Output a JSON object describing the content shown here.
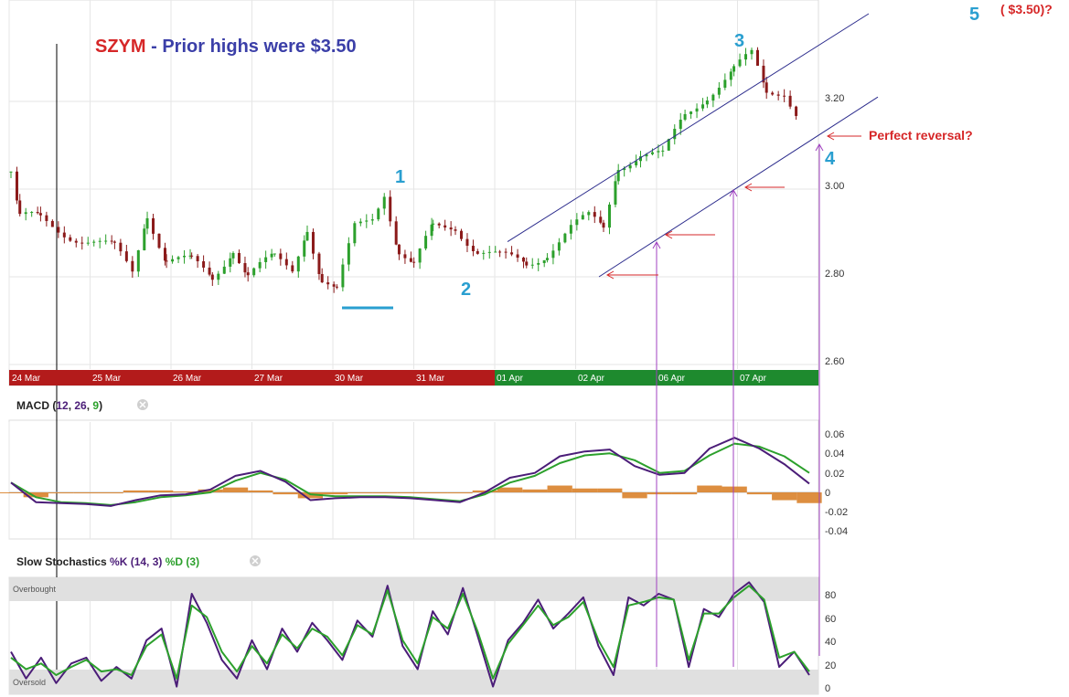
{
  "title": {
    "ticker": "SZYM",
    "sep": " - ",
    "text": "Prior highs were $3.50",
    "ticker_color": "#d62728",
    "text_color": "#3b3fa8"
  },
  "colors": {
    "up": "#2ca02c",
    "down": "#8b1a1a",
    "trend": "#2b2b8c",
    "wave": "#2a9fd0",
    "anno": "#d62728",
    "guide": "#a040c0",
    "macd": "#4b1d78",
    "signal": "#2ca02c",
    "hist": "#d9822b",
    "band_red": "#b31b1b",
    "band_green": "#1e8a2e"
  },
  "price_axis": {
    "ticks": [
      "3.20",
      "3.00",
      "2.80",
      "2.60"
    ]
  },
  "dates": [
    "24 Mar",
    "25 Mar",
    "26 Mar",
    "27 Mar",
    "30 Mar",
    "31 Mar",
    "01 Apr",
    "02 Apr",
    "06 Apr",
    "07 Apr"
  ],
  "macd_panel": {
    "label": "MACD",
    "p1": "12",
    "p2": "26",
    "p3": "9",
    "ticks": [
      "0.06",
      "0.04",
      "0.02",
      "0",
      "-0.02",
      "-0.04"
    ]
  },
  "stoch_panel": {
    "label": "Slow Stochastics",
    "k_label": "%K (14, 3)",
    "d_label": "%D (3)",
    "overbought": "Overbought",
    "oversold": "Oversold",
    "ticks": [
      "80",
      "60",
      "40",
      "20",
      "0"
    ]
  },
  "annotations": {
    "wave1": "1",
    "wave2": "2",
    "wave3": "3",
    "wave4": "4",
    "wave5": "5",
    "target": "( $3.50)?",
    "reversal": "Perfect reversal?"
  },
  "chart_data": [
    {
      "type": "line",
      "title": "SZYM - Prior highs were $3.50",
      "subtype": "candlestick",
      "x": [
        "24 Mar",
        "25 Mar",
        "26 Mar",
        "27 Mar",
        "30 Mar",
        "31 Mar",
        "01 Apr",
        "02 Apr",
        "06 Apr",
        "07 Apr"
      ],
      "series": [
        {
          "name": "",
          "values": [
            2.92,
            2.89,
            2.86,
            2.83,
            2.88,
            2.89,
            2.84,
            2.9,
            3.07,
            3.17
          ]
        }
      ],
      "session_close": [
        2.92,
        2.89,
        2.86,
        2.83,
        2.88,
        2.89,
        2.84,
        2.9,
        3.07,
        3.17
      ],
      "path": [
        [
          0,
          3.04
        ],
        [
          6,
          2.93
        ],
        [
          20,
          2.93
        ],
        [
          40,
          2.9
        ],
        [
          70,
          2.86
        ],
        [
          82,
          2.81
        ],
        [
          92,
          2.95
        ],
        [
          105,
          2.84
        ],
        [
          122,
          2.83
        ],
        [
          136,
          2.8
        ],
        [
          150,
          2.87
        ],
        [
          160,
          2.8
        ],
        [
          178,
          2.84
        ],
        [
          190,
          2.82
        ],
        [
          200,
          2.92
        ],
        [
          210,
          2.79
        ],
        [
          220,
          2.76
        ],
        [
          232,
          2.91
        ],
        [
          244,
          2.94
        ],
        [
          252,
          3.0
        ],
        [
          262,
          2.86
        ],
        [
          272,
          2.82
        ],
        [
          285,
          2.91
        ],
        [
          300,
          2.92
        ],
        [
          315,
          2.86
        ],
        [
          330,
          2.84
        ],
        [
          348,
          2.83
        ],
        [
          362,
          2.86
        ],
        [
          378,
          2.91
        ],
        [
          390,
          2.93
        ],
        [
          400,
          2.91
        ],
        [
          410,
          3.06
        ],
        [
          425,
          3.08
        ],
        [
          440,
          3.07
        ],
        [
          455,
          3.17
        ],
        [
          470,
          3.22
        ],
        [
          488,
          3.27
        ],
        [
          500,
          3.3
        ],
        [
          510,
          3.22
        ],
        [
          522,
          3.23
        ],
        [
          532,
          3.17
        ]
      ],
      "overlays": {
        "channel_upper": [
          [
            555,
            2.88
          ],
          [
            950,
            3.4
          ]
        ],
        "channel_lower": [
          [
            655,
            2.8
          ],
          [
            960,
            3.21
          ]
        ],
        "support_level": 2.74
      },
      "ylim": [
        2.55,
        3.35
      ]
    },
    {
      "type": "line",
      "title": "MACD (12, 26, 9)",
      "series": [
        {
          "name": "MACD",
          "values": [
            0.01,
            -0.01,
            -0.011,
            -0.012,
            -0.014,
            -0.008,
            -0.003,
            -0.002,
            0.003,
            0.017,
            0.022,
            0.011,
            -0.008,
            -0.006,
            -0.005,
            -0.005,
            -0.006,
            -0.008,
            -0.01,
            0.0,
            0.015,
            0.02,
            0.037,
            0.042,
            0.044,
            0.027,
            0.018,
            0.02,
            0.045,
            0.056,
            0.045,
            0.029,
            0.009
          ]
        },
        {
          "name": "Signal",
          "values": [
            0.01,
            -0.005,
            -0.01,
            -0.011,
            -0.013,
            -0.01,
            -0.005,
            -0.003,
            0.0,
            0.012,
            0.02,
            0.013,
            -0.002,
            -0.004,
            -0.004,
            -0.004,
            -0.005,
            -0.007,
            -0.009,
            -0.002,
            0.01,
            0.017,
            0.03,
            0.038,
            0.04,
            0.033,
            0.02,
            0.022,
            0.038,
            0.05,
            0.047,
            0.037,
            0.02
          ]
        },
        {
          "name": "Histogram",
          "values": [
            0.0,
            -0.005,
            -0.001,
            -0.001,
            -0.001,
            0.002,
            0.002,
            0.001,
            0.003,
            0.005,
            0.002,
            -0.002,
            -0.006,
            -0.002,
            -0.001,
            -0.001,
            -0.001,
            -0.001,
            -0.001,
            0.002,
            0.005,
            0.003,
            0.007,
            0.004,
            0.004,
            -0.006,
            -0.002,
            -0.002,
            0.007,
            0.006,
            -0.002,
            -0.008,
            -0.011
          ]
        }
      ],
      "ylim": [
        -0.05,
        0.07
      ]
    },
    {
      "type": "line",
      "title": "Slow Stochastics %K (14, 3) %D (3)",
      "series": [
        {
          "name": "%K",
          "values": [
            35,
            12,
            30,
            8,
            25,
            30,
            10,
            22,
            12,
            45,
            55,
            5,
            85,
            60,
            28,
            12,
            45,
            20,
            55,
            35,
            60,
            45,
            28,
            62,
            48,
            92,
            40,
            20,
            70,
            50,
            90,
            48,
            5,
            45,
            60,
            80,
            55,
            68,
            82,
            40,
            15,
            82,
            75,
            85,
            80,
            22,
            72,
            65,
            85,
            95,
            78,
            22,
            35,
            15
          ]
        },
        {
          "name": "%D",
          "values": [
            30,
            20,
            25,
            15,
            22,
            28,
            18,
            20,
            15,
            40,
            50,
            12,
            75,
            65,
            35,
            18,
            40,
            25,
            50,
            38,
            55,
            48,
            32,
            58,
            50,
            88,
            45,
            25,
            65,
            55,
            85,
            52,
            12,
            42,
            58,
            75,
            58,
            65,
            78,
            45,
            22,
            75,
            78,
            82,
            80,
            28,
            68,
            68,
            82,
            92,
            80,
            30,
            35,
            18
          ]
        }
      ],
      "zones": {
        "overbought": 80,
        "oversold": 20
      },
      "ylim": [
        0,
        100
      ]
    }
  ]
}
